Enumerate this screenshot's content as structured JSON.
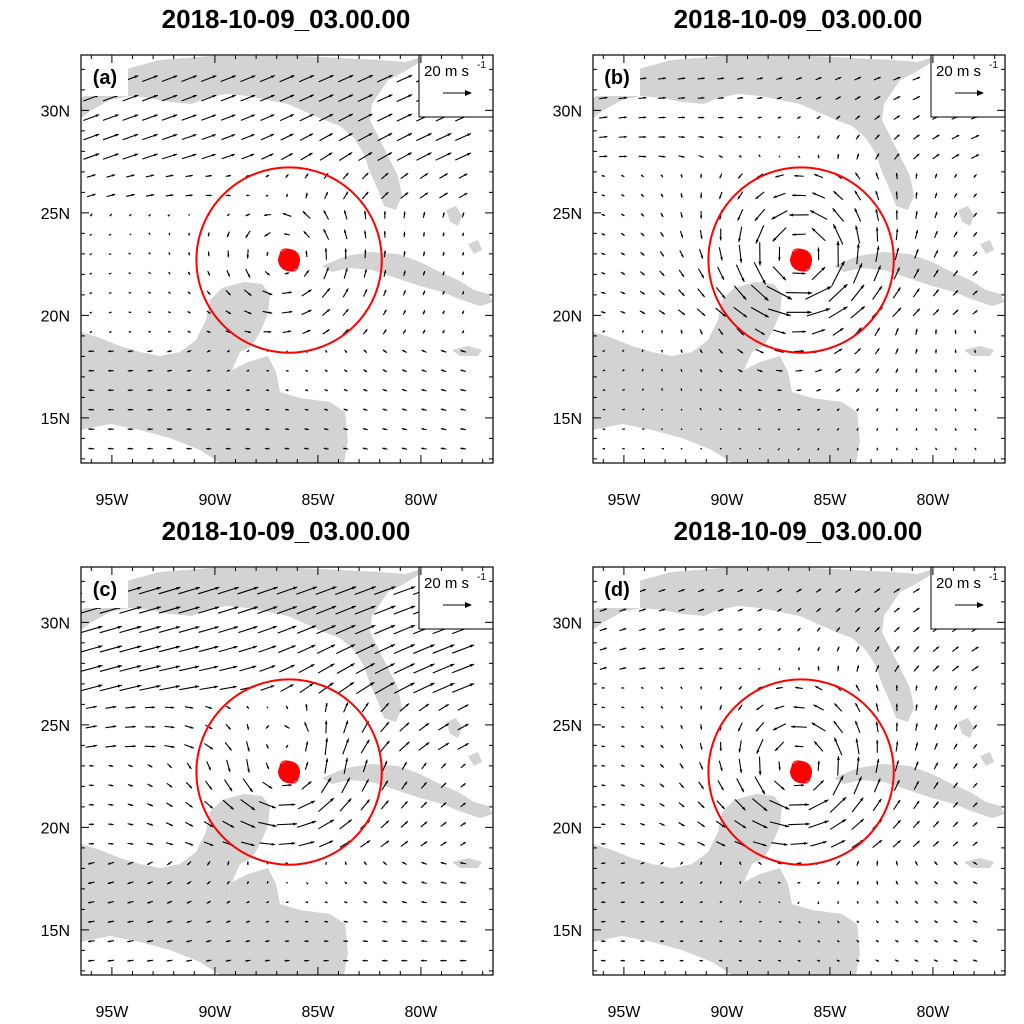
{
  "panels": [
    {
      "id": "a",
      "title": "2018-10-09_03.00.00",
      "label": "(a)",
      "pattern": "uniform_ne_weak_core"
    },
    {
      "id": "b",
      "title": "2018-10-09_03.00.00",
      "label": "(b)",
      "pattern": "strong_cyclonic_vortex"
    },
    {
      "id": "c",
      "title": "2018-10-09_03.00.00",
      "label": "(c)",
      "pattern": "strong_ne_moderate_vortex"
    },
    {
      "id": "d",
      "title": "2018-10-09_03.00.00",
      "label": "(d)",
      "pattern": "moderate_vortex"
    }
  ],
  "reference_vector": {
    "text": "20 m s",
    "sup": "-1"
  },
  "axes": {
    "x_ticks": [
      "95W",
      "90W",
      "85W",
      "80W"
    ],
    "x_tick_values": [
      -95,
      -90,
      -85,
      -80
    ],
    "y_ticks": [
      "15N",
      "20N",
      "25N",
      "30N"
    ],
    "y_tick_values": [
      15,
      20,
      25,
      30
    ],
    "lon_range": [
      -96.5,
      -76.5
    ],
    "lat_range": [
      12.8,
      32.7
    ]
  },
  "storm": {
    "center_lon": -86.4,
    "center_lat": 22.7,
    "circle_radius_deg": 4.5
  },
  "colors": {
    "land": "#d3d3d3",
    "circle": "#ff0000",
    "storm_marker": "#ff0000",
    "vectors": "#000000"
  }
}
